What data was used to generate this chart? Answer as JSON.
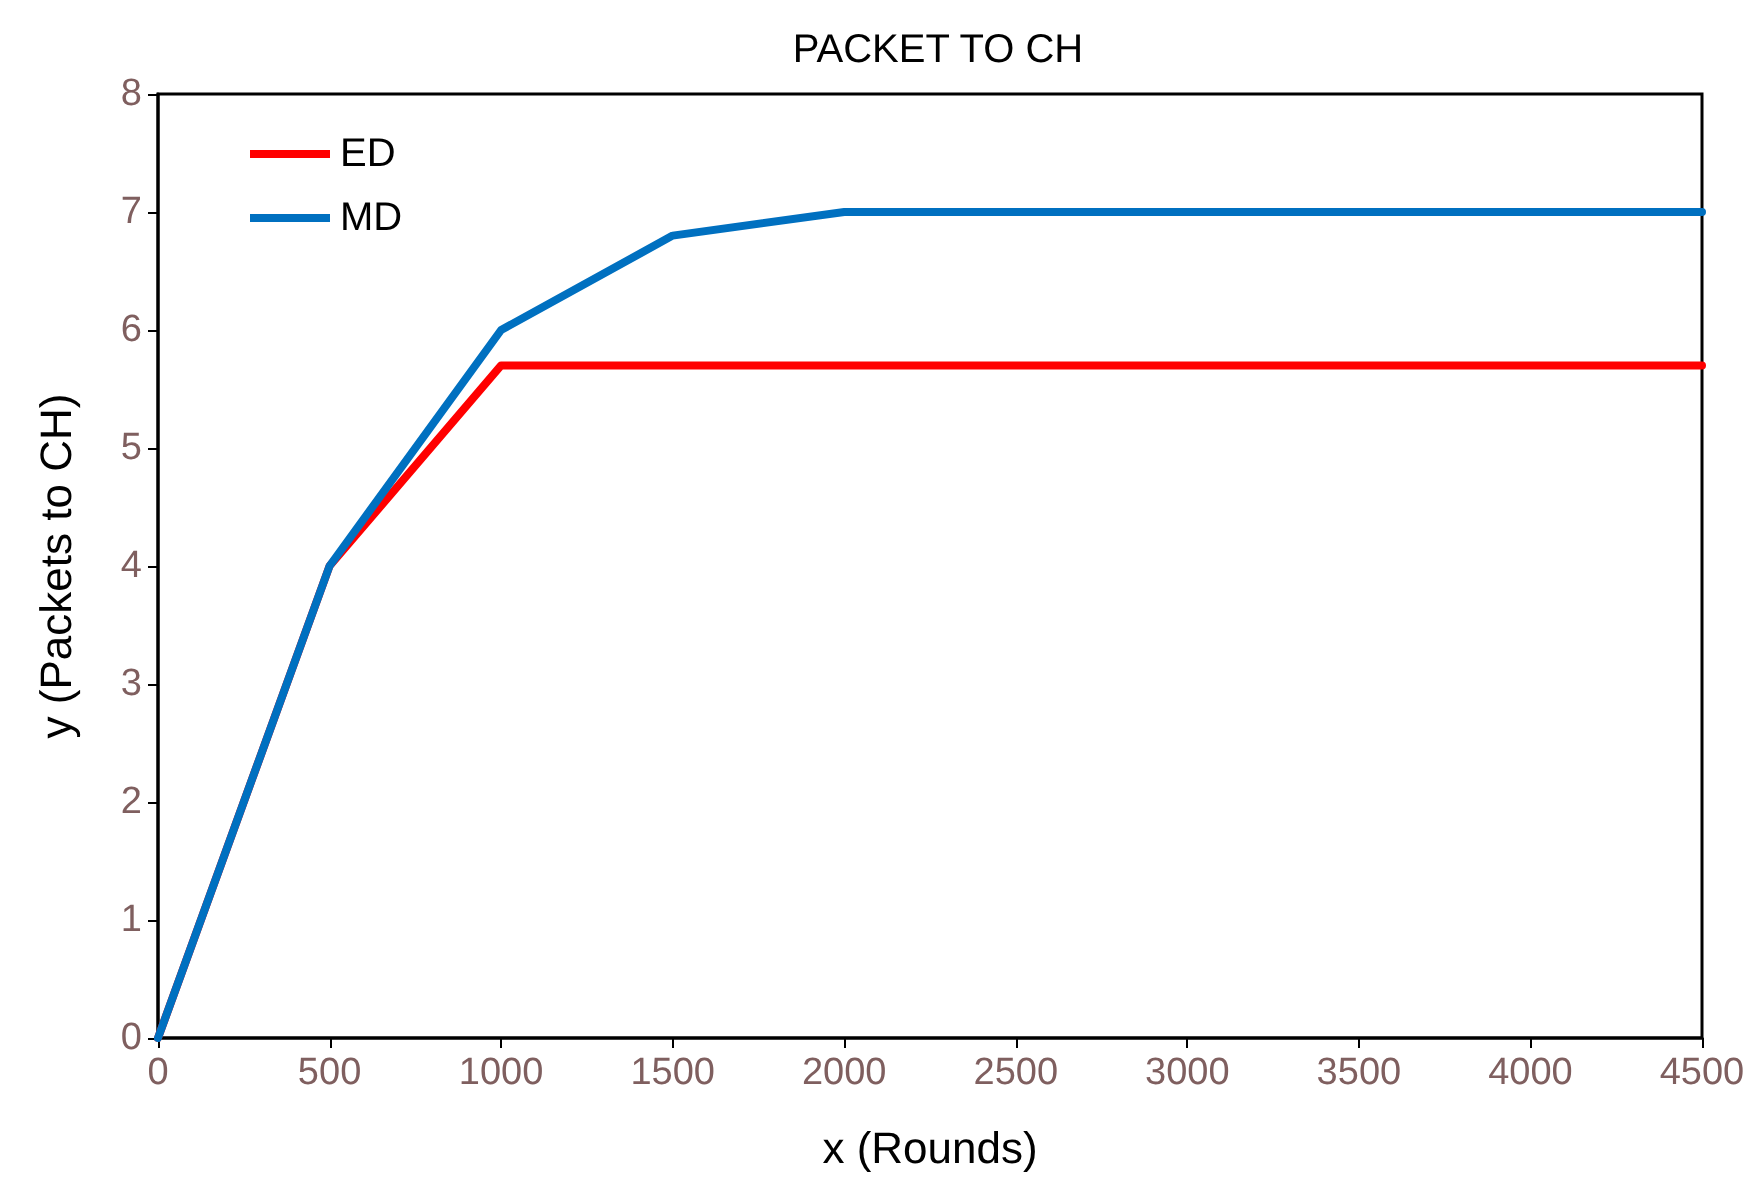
{
  "chart_data": {
    "type": "line",
    "title": "PACKET TO CH",
    "xlabel": "x (Rounds)",
    "ylabel": "y (Packets to CH)",
    "x": [
      0,
      500,
      1000,
      1500,
      2000,
      2500,
      3000,
      3500,
      4000,
      4500
    ],
    "series": [
      {
        "name": "ED",
        "color": "#ff0000",
        "values": [
          0,
          4,
          5.7,
          5.7,
          5.7,
          5.7,
          5.7,
          5.7,
          5.7,
          5.7
        ]
      },
      {
        "name": "MD",
        "color": "#0070c0",
        "values": [
          0,
          4,
          6,
          6.8,
          7,
          7,
          7,
          7,
          7,
          7
        ]
      }
    ],
    "xlim": [
      0,
      4500
    ],
    "xticks": [
      0,
      500,
      1000,
      1500,
      2000,
      2500,
      3000,
      3500,
      4000,
      4500
    ],
    "ylim": [
      0,
      8
    ],
    "yticks": [
      0,
      1,
      2,
      3,
      4,
      5,
      6,
      7,
      8
    ],
    "grid": false,
    "legend": "top left",
    "marker": "none",
    "line_style": "solid"
  }
}
